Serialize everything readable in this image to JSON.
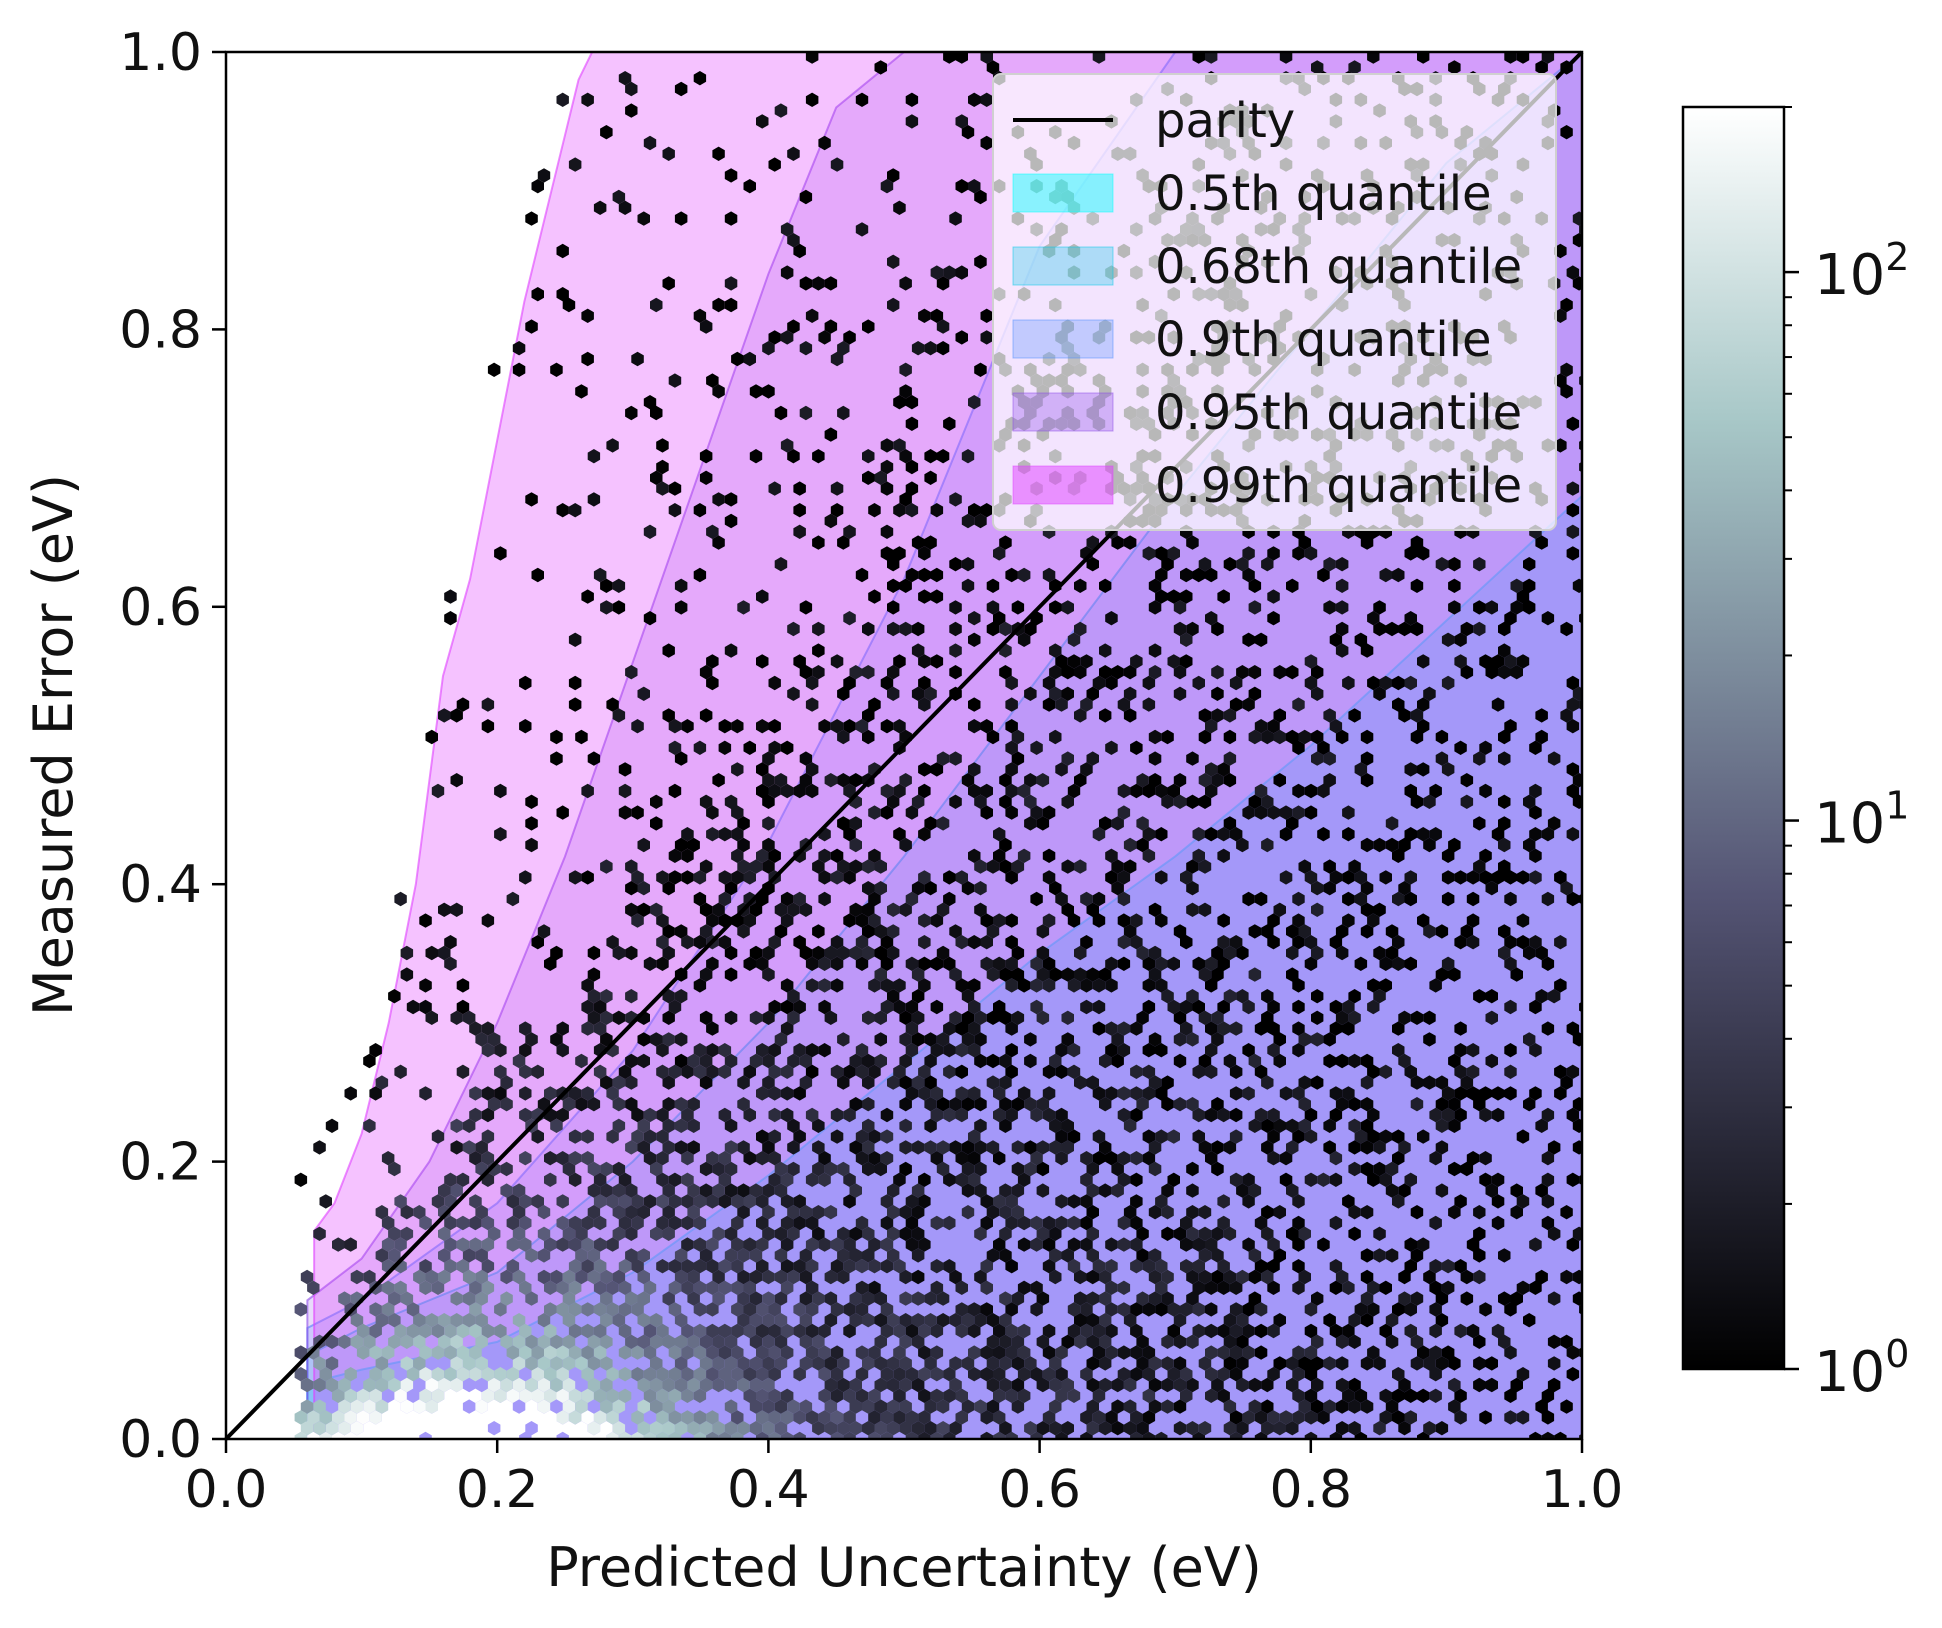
{
  "chart_data": {
    "type": "hexbin",
    "xlabel": "Predicted Uncertainty (eV)",
    "ylabel": "Measured Error (eV)",
    "xlim": [
      0.0,
      1.0
    ],
    "ylim": [
      0.0,
      1.0
    ],
    "x_ticks": [
      0.0,
      0.2,
      0.4,
      0.6,
      0.8,
      1.0
    ],
    "y_ticks": [
      0.0,
      0.2,
      0.4,
      0.6,
      0.8,
      1.0
    ],
    "x_tick_labels": [
      "0.0",
      "0.2",
      "0.4",
      "0.6",
      "0.8",
      "1.0"
    ],
    "y_tick_labels": [
      "0.0",
      "0.2",
      "0.4",
      "0.6",
      "0.8",
      "1.0"
    ],
    "grid": false,
    "legend_position": "top-right",
    "parity": {
      "label": "parity",
      "color": "#000000",
      "x": [
        0.0,
        1.0
      ],
      "y": [
        0.0,
        1.0
      ]
    },
    "quantiles": [
      {
        "label": "0.5th quantile",
        "color": "#00ffff",
        "opacity": 0.28,
        "x": [
          0.06,
          0.1,
          0.2,
          0.3,
          0.4,
          0.5,
          0.6,
          0.7,
          0.8,
          0.9,
          1.0
        ],
        "y": [
          0.04,
          0.05,
          0.07,
          0.12,
          0.19,
          0.27,
          0.35,
          0.42,
          0.5,
          0.59,
          0.68
        ]
      },
      {
        "label": "0.68th quantile",
        "color": "#00c8e8",
        "opacity": 0.18,
        "x": [
          0.06,
          0.1,
          0.2,
          0.3,
          0.4,
          0.5,
          0.6,
          0.7,
          0.8,
          0.9,
          1.0
        ],
        "y": [
          0.06,
          0.08,
          0.12,
          0.2,
          0.3,
          0.42,
          0.55,
          0.68,
          0.8,
          0.92,
          1.0
        ]
      },
      {
        "label": "0.9th quantile",
        "color": "#4a8cff",
        "opacity": 0.18,
        "x": [
          0.06,
          0.1,
          0.2,
          0.3,
          0.4,
          0.5,
          0.55,
          0.6,
          0.7,
          0.8,
          0.9,
          0.95,
          1.0
        ],
        "y": [
          0.08,
          0.1,
          0.17,
          0.28,
          0.43,
          0.62,
          0.74,
          0.86,
          1.0,
          1.0,
          1.0,
          1.0,
          1.0
        ]
      },
      {
        "label": "0.95th quantile",
        "color": "#8a48e8",
        "opacity": 0.2,
        "x": [
          0.06,
          0.1,
          0.15,
          0.2,
          0.25,
          0.3,
          0.35,
          0.4,
          0.45,
          0.5,
          0.52,
          0.6,
          0.8,
          1.0
        ],
        "y": [
          0.1,
          0.13,
          0.2,
          0.3,
          0.42,
          0.56,
          0.7,
          0.84,
          0.96,
          1.0,
          1.0,
          1.0,
          1.0,
          1.0
        ]
      },
      {
        "label": "0.99th quantile",
        "color": "#e040ff",
        "opacity": 0.32,
        "x": [
          0.065,
          0.08,
          0.1,
          0.12,
          0.14,
          0.16,
          0.18,
          0.2,
          0.22,
          0.24,
          0.26,
          0.27,
          0.4,
          1.0
        ],
        "y": [
          0.15,
          0.17,
          0.22,
          0.3,
          0.4,
          0.55,
          0.62,
          0.72,
          0.82,
          0.9,
          0.98,
          1.0,
          1.0,
          1.0
        ]
      }
    ],
    "colorbar": {
      "scale": "log",
      "cmap": "bone",
      "min": 1,
      "max": 200,
      "tick_values": [
        1,
        10,
        100
      ],
      "tick_labels": [
        {
          "base": "10",
          "exp": "0"
        },
        {
          "base": "10",
          "exp": "1"
        },
        {
          "base": "10",
          "exp": "2"
        }
      ]
    },
    "density_description_values": {
      "hexbin_gridsize": 100,
      "peak_count_x": 0.2,
      "peak_count_y": 0.02
    }
  }
}
